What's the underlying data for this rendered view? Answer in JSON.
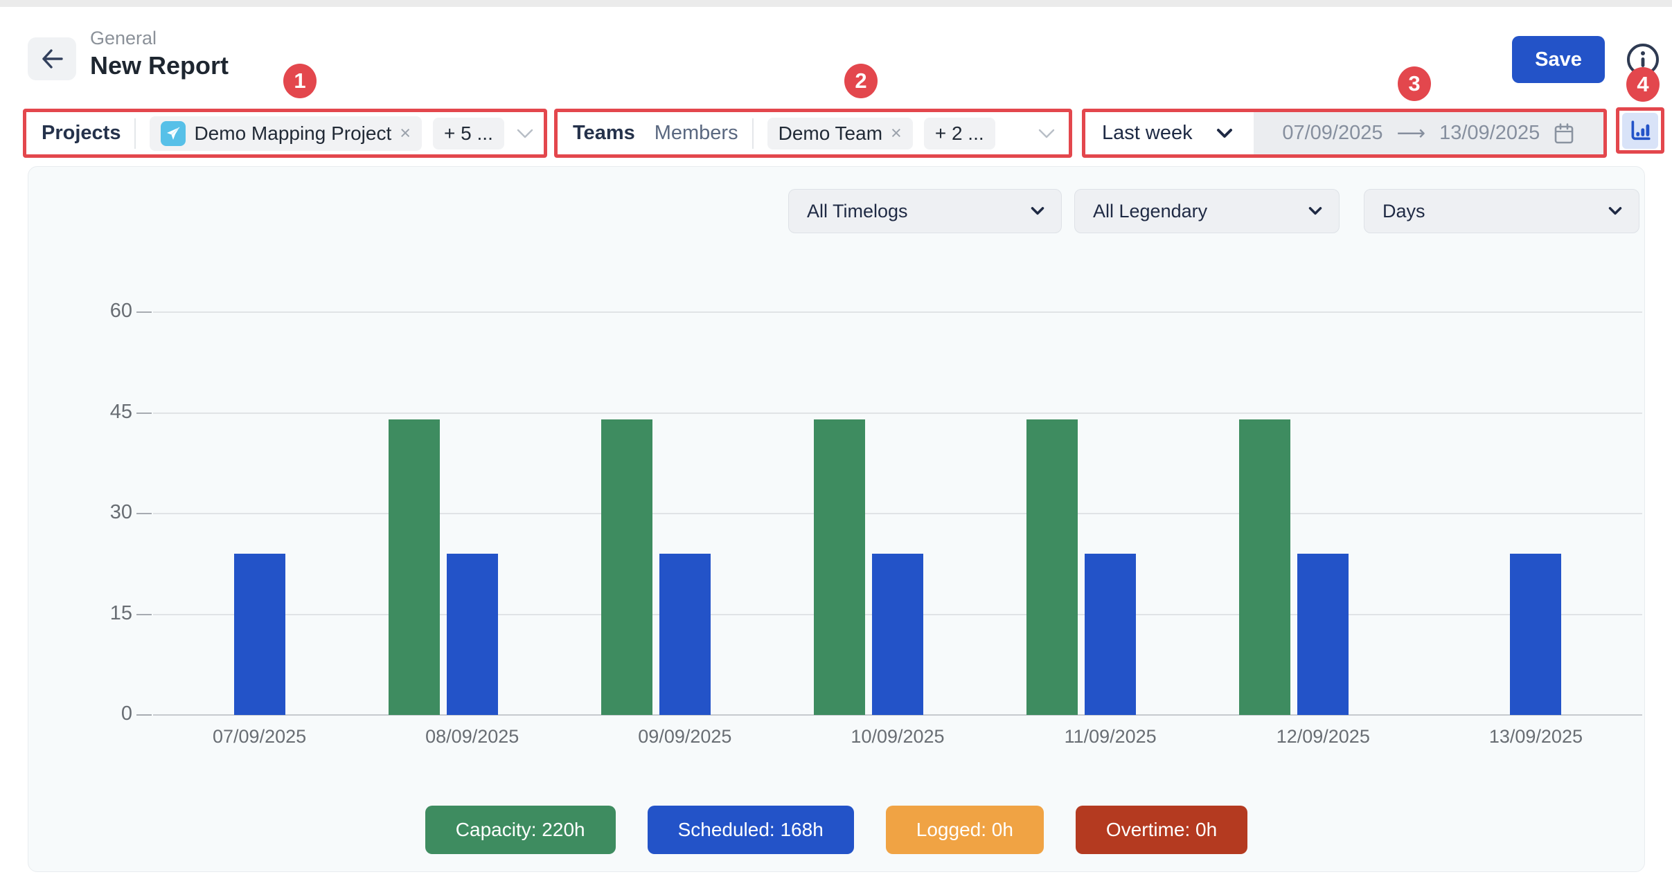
{
  "window": {
    "breadcrumb": "General",
    "title": "New Report"
  },
  "header": {
    "save_label": "Save"
  },
  "annotations": {
    "badge_1": "1",
    "badge_2": "2",
    "badge_3": "3",
    "badge_4": "4"
  },
  "filters": {
    "projects": {
      "label": "Projects",
      "tags": [
        {
          "text": "Demo Mapping Project",
          "remove_icon": "×",
          "avatar": "airplane"
        },
        {
          "text": "+ 5 ..."
        }
      ]
    },
    "teams": {
      "label": "Teams",
      "secondary_label": "Members",
      "tags": [
        {
          "text": "Demo Team",
          "remove_icon": "×"
        },
        {
          "text": "+ 2 ..."
        }
      ]
    },
    "date_range": {
      "preset": "Last week",
      "start": "07/09/2025",
      "arrow_icon": "⟶",
      "end": "13/09/2025"
    }
  },
  "toolbar": {
    "timelog_filter": "All Timelogs",
    "legend_filter": "All Legendary",
    "granularity": "Days"
  },
  "chart_data": {
    "type": "bar",
    "title": "",
    "xlabel": "",
    "ylabel": "",
    "categories": [
      "07/09/2025",
      "08/09/2025",
      "09/09/2025",
      "10/09/2025",
      "11/09/2025",
      "12/09/2025",
      "13/09/2025"
    ],
    "series": [
      {
        "name": "Capacity",
        "color": "#3e8c60",
        "values": [
          0,
          44,
          44,
          44,
          44,
          44,
          0
        ]
      },
      {
        "name": "Scheduled",
        "color": "#2353c8",
        "values": [
          24,
          24,
          24,
          24,
          24,
          24,
          24
        ]
      },
      {
        "name": "Logged",
        "color": "#f0a344",
        "values": [
          0,
          0,
          0,
          0,
          0,
          0,
          0
        ]
      },
      {
        "name": "Overtime",
        "color": "#b43a20",
        "values": [
          0,
          0,
          0,
          0,
          0,
          0,
          0
        ]
      }
    ],
    "ylim": [
      0,
      60
    ],
    "yticks": [
      0,
      15,
      30,
      45,
      60
    ],
    "grid": true,
    "legend_position": "bottom",
    "legend": [
      {
        "label": "Capacity: 220h",
        "color": "#3e8c60"
      },
      {
        "label": "Scheduled: 168h",
        "color": "#2353c8"
      },
      {
        "label": "Logged: 0h",
        "color": "#f0a344"
      },
      {
        "label": "Overtime: 0h",
        "color": "#b43a20"
      }
    ]
  },
  "colors": {
    "annotation_red": "#e3474d",
    "save_blue": "#2353c8",
    "card_bg": "#f7fafb",
    "chip_bg": "#f1f2f4",
    "avatar_blue": "#57c0e8"
  }
}
